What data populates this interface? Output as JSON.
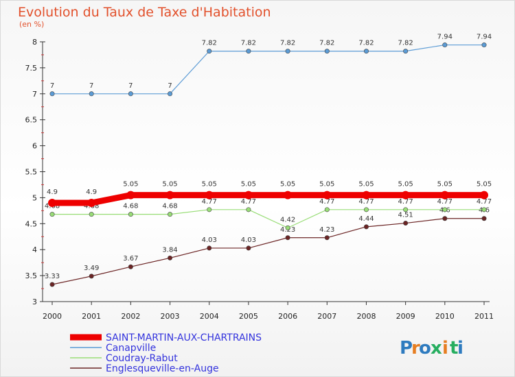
{
  "chart_data": {
    "type": "line",
    "title": "Evolution du Taux de Taxe d'Habitation",
    "subtitle": "(en %)",
    "x": [
      "2000",
      "2001",
      "2002",
      "2003",
      "2004",
      "2005",
      "2006",
      "2007",
      "2008",
      "2009",
      "2010",
      "2011"
    ],
    "yticks": [
      "3",
      "3.5",
      "4",
      "4.5",
      "5",
      "5.5",
      "6",
      "6.5",
      "7",
      "7.5",
      "8"
    ],
    "ylim": [
      3,
      8
    ],
    "grid": false,
    "legend_position": "bottom-left",
    "series": [
      {
        "name": "SAINT-MARTIN-AUX-CHARTRAINS",
        "color": "#ee0000",
        "values": [
          4.9,
          4.9,
          5.05,
          5.05,
          5.05,
          5.05,
          5.05,
          5.05,
          5.05,
          5.05,
          5.05,
          5.05
        ],
        "labels": [
          "4.9",
          "4.9",
          "5.05",
          "5.05",
          "5.05",
          "5.05",
          "5.05",
          "5.05",
          "5.05",
          "5.05",
          "5.05",
          "5.05"
        ]
      },
      {
        "name": "Canapville",
        "color": "#5b9bd5",
        "values": [
          7,
          7,
          7,
          7,
          7.82,
          7.82,
          7.82,
          7.82,
          7.82,
          7.82,
          7.94,
          7.94
        ],
        "labels": [
          "7",
          "7",
          "7",
          "7",
          "7.82",
          "7.82",
          "7.82",
          "7.82",
          "7.82",
          "7.82",
          "7.94",
          "7.94"
        ]
      },
      {
        "name": "Coudray-Rabut",
        "color": "#99dd77",
        "values": [
          4.68,
          4.68,
          4.68,
          4.68,
          4.77,
          4.77,
          4.42,
          4.77,
          4.77,
          4.77,
          4.77,
          4.77
        ],
        "labels": [
          "4.68",
          "4.68",
          "4.68",
          "4.68",
          "4.77",
          "4.77",
          "4.42",
          "4.77",
          "4.77",
          "4.77",
          "4.77",
          "4.77"
        ]
      },
      {
        "name": "Englesqueville-en-Auge",
        "color": "#6b2424",
        "values": [
          3.33,
          3.49,
          3.67,
          3.84,
          4.03,
          4.03,
          4.23,
          4.23,
          4.44,
          4.51,
          4.6,
          4.6
        ],
        "labels": [
          "3.33",
          "3.49",
          "3.67",
          "3.84",
          "4.03",
          "4.03",
          "4.23",
          "4.23",
          "4.44",
          "4.51",
          "4.6",
          "4.6"
        ]
      }
    ]
  },
  "brand": {
    "letters": [
      "P",
      "r",
      "o",
      "x",
      "i",
      "t",
      "i"
    ],
    "colors": [
      "#2e7bbf",
      "#e67e22",
      "#2e7bbf",
      "#27ae60",
      "#e67e22",
      "#27ae60",
      "#2e7bbf"
    ]
  }
}
